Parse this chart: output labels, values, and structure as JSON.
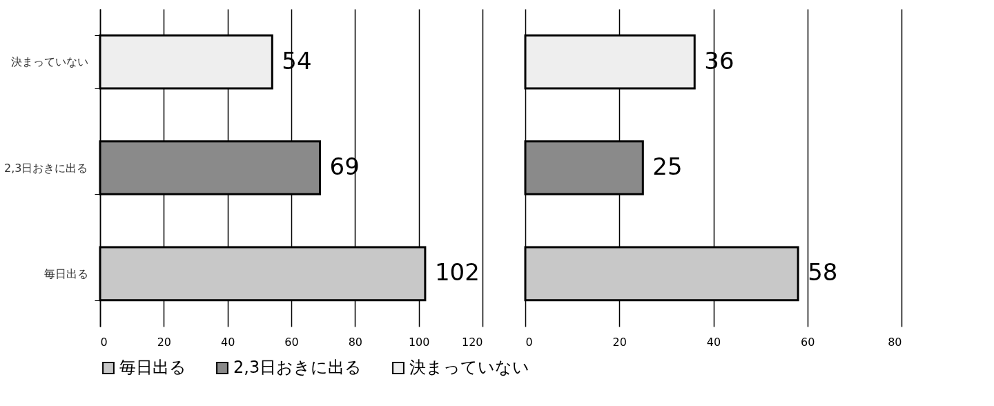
{
  "chart_data": [
    {
      "type": "bar",
      "orientation": "horizontal",
      "categories": [
        "決まっていない",
        "2,3日おきに出る",
        "毎日出る"
      ],
      "series": [
        {
          "name": "毎日出る",
          "color": "#c8c8c8",
          "values": [
            null,
            null,
            102
          ]
        },
        {
          "name": "2,3日おきに出る",
          "color": "#8a8a8a",
          "values": [
            null,
            69,
            null
          ]
        },
        {
          "name": "決まっていない",
          "color": "#eeeeee",
          "values": [
            54,
            null,
            null
          ]
        }
      ],
      "xlim": [
        0,
        120
      ],
      "xticks": [
        0,
        20,
        40,
        60,
        80,
        100,
        120
      ],
      "grid": "x",
      "data_labels": true,
      "legend": "bottom"
    },
    {
      "type": "bar",
      "orientation": "horizontal",
      "categories": [
        "決まっていない",
        "2,3日おきに出る",
        "毎日出る"
      ],
      "series": [
        {
          "name": "毎日出る",
          "color": "#c8c8c8",
          "values": [
            null,
            null,
            58
          ]
        },
        {
          "name": "2,3日おきに出る",
          "color": "#8a8a8a",
          "values": [
            null,
            25,
            null
          ]
        },
        {
          "name": "決まっていない",
          "color": "#eeeeee",
          "values": [
            36,
            null,
            null
          ]
        }
      ],
      "xlim": [
        0,
        80
      ],
      "xticks": [
        0,
        20,
        40,
        60,
        80
      ],
      "grid": "x",
      "data_labels": true,
      "tick_labels": "x"
    }
  ]
}
